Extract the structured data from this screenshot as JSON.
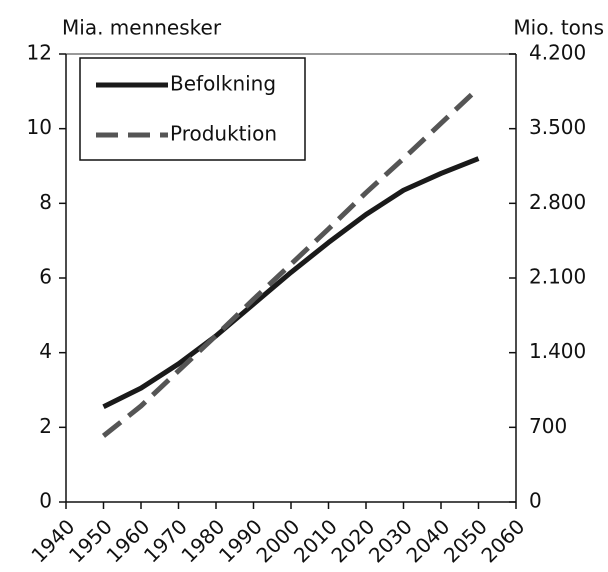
{
  "chart_data": {
    "type": "line",
    "ylabel": "Mia. mennesker",
    "y2label": "Mio. tons",
    "x": [
      1950,
      1960,
      1970,
      1980,
      1990,
      2000,
      2010,
      2020,
      2030,
      2040,
      2050
    ],
    "series": [
      {
        "name": "Befolkning",
        "color": "#1a1a1a",
        "line_style": "solid",
        "values": [
          2.55,
          3.05,
          3.7,
          4.45,
          5.3,
          6.15,
          6.95,
          7.7,
          8.35,
          8.8,
          9.2
        ]
      },
      {
        "name": "Produktion",
        "color": "#555555",
        "line_style": "dashed",
        "axis": "y2",
        "values": [
          620,
          900,
          1230,
          1560,
          1900,
          2230,
          2560,
          2900,
          3220,
          3550,
          3880
        ]
      }
    ],
    "xlim": [
      1940,
      2060
    ],
    "xticks": [
      1940,
      1950,
      1960,
      1970,
      1980,
      1990,
      2000,
      2010,
      2020,
      2030,
      2040,
      2050,
      2060
    ],
    "ylim": [
      0,
      12
    ],
    "yticks": [
      0,
      2,
      4,
      6,
      8,
      10,
      12
    ],
    "y2lim": [
      0,
      4200
    ],
    "y2ticks": [
      0,
      700,
      {
        "value": 1400,
        "label": "1.400"
      },
      {
        "value": 2100,
        "label": "2.100"
      },
      {
        "value": 2800,
        "label": "2.800"
      },
      {
        "value": 3500,
        "label": "3.500"
      },
      {
        "value": 4200,
        "label": "4.200"
      }
    ],
    "legend": "upper left"
  }
}
